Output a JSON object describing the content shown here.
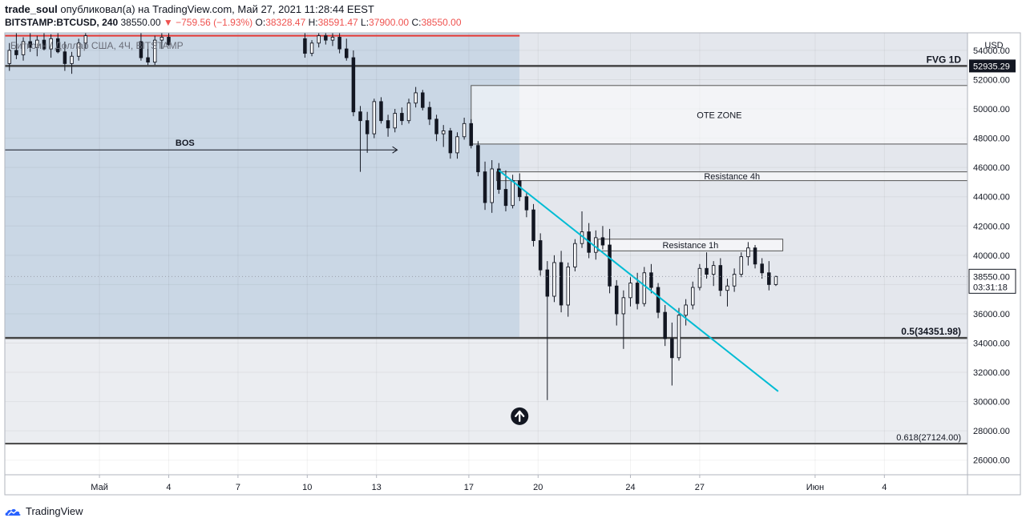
{
  "header": {
    "author": "trade_soul",
    "published_text": "опубликовал(а) на TradingView.com, Май 27, 2021 11:28:44 EEST",
    "symbol": "BITSTAMP:BTCUSD, 240",
    "last": "38550.00",
    "change": "−759.56 (−1.93%)",
    "open_label": "O:",
    "open": "38328.47",
    "high_label": "H:",
    "high": "38591.47",
    "low_label": "L:",
    "low": "37900.00",
    "close_label": "C:",
    "close": "38550.00"
  },
  "legend_overlay": "Биткоин / Доллар США, 4Ч, BITSTAMP",
  "footer": {
    "brand": "TradingView"
  },
  "colors": {
    "grid": "#e9ecf1",
    "candle": "#131722",
    "trendline": "#00bcd4",
    "red_line": "#e53935",
    "shade_blue": "#b8c9dc",
    "shade_gray": "#e6e8ee",
    "box_fill": "#ffffff"
  },
  "chart_data": {
    "type": "candlestick",
    "y_axis": {
      "unit": "USD",
      "ylim": [
        25000,
        55200
      ],
      "ticks": [
        26000,
        28000,
        30000,
        32000,
        34000,
        36000,
        38000,
        40000,
        42000,
        44000,
        46000,
        48000,
        50000,
        52000,
        54000
      ],
      "tick_labels": [
        "26000.00",
        "28000.00",
        "30000.00",
        "32000.00",
        "34000.00",
        "36000.00",
        "38000.00",
        "40000.00",
        "42000.00",
        "44000.00",
        "46000.00",
        "48000.00",
        "50000.00",
        "52000.00",
        "54000.00"
      ]
    },
    "x_axis": {
      "ticks": [
        {
          "day": 1,
          "label": "Май"
        },
        {
          "day": 4,
          "label": "4"
        },
        {
          "day": 7,
          "label": "7"
        },
        {
          "day": 10,
          "label": "10"
        },
        {
          "day": 13,
          "label": "13"
        },
        {
          "day": 17,
          "label": "17"
        },
        {
          "day": 20,
          "label": "20"
        },
        {
          "day": 24,
          "label": "24"
        },
        {
          "day": 27,
          "label": "27"
        },
        {
          "day": 32,
          "label": "Июн"
        },
        {
          "day": 35,
          "label": "4"
        }
      ],
      "xlim": [
        -3.1,
        38.6
      ]
    },
    "price_labels": [
      {
        "name": "fvg-price-label",
        "value": 52935.29,
        "text": "52935.29",
        "style": "dark"
      },
      {
        "name": "last-price-label",
        "value": 38550.0,
        "text": "38550.00",
        "sub": "03:31:18",
        "style": "light"
      }
    ],
    "levels": [
      {
        "name": "fvg-1d-level",
        "value": 52935.29,
        "label": "FVG 1D",
        "label_style": "bold"
      },
      {
        "name": "fib-05-level",
        "value": 34351.98,
        "label": "0.5(34351.98)",
        "label_style": "bold"
      },
      {
        "name": "fib-0618-level",
        "value": 27124.0,
        "label": "0.618(27124.00)",
        "label_style": "normal"
      }
    ],
    "red_line": {
      "value": 55000,
      "x_from": -3.1,
      "x_to": 19.2
    },
    "bos": {
      "label": "BOS",
      "value": 47200,
      "x_from": -3.1,
      "x_to": 13.9
    },
    "zones": [
      {
        "name": "ote-zone",
        "label": "OTE ZONE",
        "y_top": 51600,
        "y_bottom": 47600,
        "x_from": 17.1,
        "x_to": 38.6
      },
      {
        "name": "resistance-4h",
        "label": "Resistance 4h",
        "y_top": 45700,
        "y_bottom": 45100,
        "x_from": 18.2,
        "x_to": 38.6
      },
      {
        "name": "resistance-1h",
        "label": "Resistance 1h",
        "y_top": 41100,
        "y_bottom": 40300,
        "x_from": 22.6,
        "x_to": 30.6
      }
    ],
    "trendline": {
      "x1": 18.3,
      "y1": 45800,
      "x2": 30.4,
      "y2": 30700
    },
    "up_marker": {
      "x": 19.2,
      "y": 29000
    },
    "shaded_regions": [
      {
        "name": "premium-shade",
        "y_top": 55200,
        "y_bottom": 34351.98,
        "x_from": -3.1,
        "x_to": 19.2
      },
      {
        "name": "discount-shade",
        "y_top": 34351.98,
        "y_bottom": 27124.0,
        "x_from": -3.1,
        "x_to": 38.6
      }
    ],
    "candles": [
      {
        "x": -2.9,
        "o": 53100,
        "h": 54500,
        "l": 52600,
        "c": 54000
      },
      {
        "x": -2.6,
        "o": 54000,
        "h": 55200,
        "l": 53400,
        "c": 53700
      },
      {
        "x": -2.3,
        "o": 53700,
        "h": 54900,
        "l": 53300,
        "c": 54600
      },
      {
        "x": -2.0,
        "o": 54600,
        "h": 55200,
        "l": 53900,
        "c": 54200
      },
      {
        "x": -1.7,
        "o": 54200,
        "h": 55000,
        "l": 53600,
        "c": 54700
      },
      {
        "x": -1.4,
        "o": 54700,
        "h": 55200,
        "l": 54000,
        "c": 54100
      },
      {
        "x": -1.1,
        "o": 54100,
        "h": 55100,
        "l": 53500,
        "c": 54800
      },
      {
        "x": -0.8,
        "o": 54800,
        "h": 55200,
        "l": 53800,
        "c": 53900
      },
      {
        "x": -0.5,
        "o": 53900,
        "h": 54600,
        "l": 52600,
        "c": 53100
      },
      {
        "x": -0.2,
        "o": 53100,
        "h": 53900,
        "l": 52400,
        "c": 53600
      },
      {
        "x": 0.1,
        "o": 53600,
        "h": 54800,
        "l": 53300,
        "c": 54500
      },
      {
        "x": 0.4,
        "o": 54500,
        "h": 55200,
        "l": 54100,
        "c": 55000
      },
      {
        "x": 2.8,
        "o": 54600,
        "h": 55200,
        "l": 53300,
        "c": 53500
      },
      {
        "x": 3.1,
        "o": 53500,
        "h": 54300,
        "l": 53000,
        "c": 53200
      },
      {
        "x": 3.4,
        "o": 53200,
        "h": 55000,
        "l": 53000,
        "c": 54700
      },
      {
        "x": 3.7,
        "o": 54700,
        "h": 55200,
        "l": 54100,
        "c": 54900
      },
      {
        "x": 4.0,
        "o": 54900,
        "h": 55200,
        "l": 54300,
        "c": 54400
      },
      {
        "x": 9.9,
        "o": 54800,
        "h": 55200,
        "l": 53500,
        "c": 53800
      },
      {
        "x": 10.2,
        "o": 53800,
        "h": 54700,
        "l": 53600,
        "c": 54500
      },
      {
        "x": 10.5,
        "o": 54500,
        "h": 55200,
        "l": 54200,
        "c": 55000
      },
      {
        "x": 10.8,
        "o": 55000,
        "h": 55200,
        "l": 54400,
        "c": 54700
      },
      {
        "x": 11.1,
        "o": 54700,
        "h": 55200,
        "l": 54300,
        "c": 54900
      },
      {
        "x": 11.4,
        "o": 54900,
        "h": 55200,
        "l": 53800,
        "c": 54100
      },
      {
        "x": 11.7,
        "o": 54100,
        "h": 54800,
        "l": 53300,
        "c": 53500
      },
      {
        "x": 12.0,
        "o": 53500,
        "h": 54000,
        "l": 49500,
        "c": 49800
      },
      {
        "x": 12.3,
        "o": 49800,
        "h": 50200,
        "l": 45700,
        "c": 49200
      },
      {
        "x": 12.6,
        "o": 49200,
        "h": 49800,
        "l": 47000,
        "c": 48300
      },
      {
        "x": 12.9,
        "o": 48300,
        "h": 50700,
        "l": 48000,
        "c": 50500
      },
      {
        "x": 13.2,
        "o": 50500,
        "h": 50800,
        "l": 49000,
        "c": 49200
      },
      {
        "x": 13.5,
        "o": 49200,
        "h": 49600,
        "l": 48100,
        "c": 48700
      },
      {
        "x": 13.8,
        "o": 48700,
        "h": 50000,
        "l": 48400,
        "c": 49700
      },
      {
        "x": 14.1,
        "o": 49700,
        "h": 50100,
        "l": 48900,
        "c": 49200
      },
      {
        "x": 14.4,
        "o": 49200,
        "h": 50700,
        "l": 49000,
        "c": 50400
      },
      {
        "x": 14.7,
        "o": 50400,
        "h": 51500,
        "l": 50100,
        "c": 51100
      },
      {
        "x": 15.0,
        "o": 51100,
        "h": 51300,
        "l": 49900,
        "c": 50100
      },
      {
        "x": 15.3,
        "o": 50100,
        "h": 50500,
        "l": 48900,
        "c": 49300
      },
      {
        "x": 15.6,
        "o": 49300,
        "h": 49600,
        "l": 47800,
        "c": 48300
      },
      {
        "x": 15.9,
        "o": 48300,
        "h": 48900,
        "l": 47400,
        "c": 48500
      },
      {
        "x": 16.2,
        "o": 48500,
        "h": 48700,
        "l": 46600,
        "c": 47000
      },
      {
        "x": 16.5,
        "o": 47000,
        "h": 48400,
        "l": 46600,
        "c": 48100
      },
      {
        "x": 16.8,
        "o": 48100,
        "h": 49400,
        "l": 47900,
        "c": 49000
      },
      {
        "x": 17.1,
        "o": 49000,
        "h": 49300,
        "l": 47300,
        "c": 47500
      },
      {
        "x": 17.4,
        "o": 47500,
        "h": 47800,
        "l": 45400,
        "c": 45700
      },
      {
        "x": 17.7,
        "o": 45700,
        "h": 46400,
        "l": 43100,
        "c": 43600
      },
      {
        "x": 18.0,
        "o": 43600,
        "h": 46500,
        "l": 42900,
        "c": 45900
      },
      {
        "x": 18.3,
        "o": 45900,
        "h": 46300,
        "l": 44200,
        "c": 44500
      },
      {
        "x": 18.6,
        "o": 44500,
        "h": 45800,
        "l": 43000,
        "c": 43400
      },
      {
        "x": 18.9,
        "o": 43400,
        "h": 45500,
        "l": 43200,
        "c": 45100
      },
      {
        "x": 19.2,
        "o": 45100,
        "h": 45600,
        "l": 43700,
        "c": 44000
      },
      {
        "x": 19.5,
        "o": 44000,
        "h": 44300,
        "l": 42600,
        "c": 43100
      },
      {
        "x": 19.8,
        "o": 43100,
        "h": 43500,
        "l": 40600,
        "c": 41000
      },
      {
        "x": 20.1,
        "o": 41000,
        "h": 41500,
        "l": 38600,
        "c": 39000
      },
      {
        "x": 20.4,
        "o": 39000,
        "h": 39600,
        "l": 30100,
        "c": 37200
      },
      {
        "x": 20.7,
        "o": 37200,
        "h": 40000,
        "l": 36800,
        "c": 39500
      },
      {
        "x": 21.0,
        "o": 39500,
        "h": 40300,
        "l": 36100,
        "c": 36600
      },
      {
        "x": 21.3,
        "o": 36600,
        "h": 39500,
        "l": 35800,
        "c": 39200
      },
      {
        "x": 21.6,
        "o": 39200,
        "h": 41100,
        "l": 38900,
        "c": 40800
      },
      {
        "x": 21.9,
        "o": 40800,
        "h": 43000,
        "l": 40500,
        "c": 41600
      },
      {
        "x": 22.2,
        "o": 41600,
        "h": 42200,
        "l": 39800,
        "c": 40200
      },
      {
        "x": 22.5,
        "o": 40200,
        "h": 41700,
        "l": 39700,
        "c": 41200
      },
      {
        "x": 22.8,
        "o": 41200,
        "h": 42000,
        "l": 40400,
        "c": 40700
      },
      {
        "x": 23.1,
        "o": 40700,
        "h": 41800,
        "l": 37400,
        "c": 37900
      },
      {
        "x": 23.4,
        "o": 37900,
        "h": 38300,
        "l": 35200,
        "c": 36000
      },
      {
        "x": 23.7,
        "o": 36000,
        "h": 37600,
        "l": 33600,
        "c": 37100
      },
      {
        "x": 24.0,
        "o": 37100,
        "h": 38500,
        "l": 36500,
        "c": 38100
      },
      {
        "x": 24.3,
        "o": 38100,
        "h": 38800,
        "l": 36300,
        "c": 36700
      },
      {
        "x": 24.6,
        "o": 36700,
        "h": 39200,
        "l": 36500,
        "c": 38800
      },
      {
        "x": 24.9,
        "o": 38800,
        "h": 39400,
        "l": 37400,
        "c": 37800
      },
      {
        "x": 25.2,
        "o": 37800,
        "h": 38100,
        "l": 35700,
        "c": 36100
      },
      {
        "x": 25.5,
        "o": 36100,
        "h": 36600,
        "l": 33800,
        "c": 34300
      },
      {
        "x": 25.8,
        "o": 34300,
        "h": 35400,
        "l": 31100,
        "c": 33000
      },
      {
        "x": 26.1,
        "o": 33000,
        "h": 36400,
        "l": 32800,
        "c": 35900
      },
      {
        "x": 26.4,
        "o": 35900,
        "h": 37000,
        "l": 35200,
        "c": 36600
      },
      {
        "x": 26.7,
        "o": 36600,
        "h": 38200,
        "l": 36300,
        "c": 37800
      },
      {
        "x": 27.0,
        "o": 37800,
        "h": 39400,
        "l": 37600,
        "c": 39100
      },
      {
        "x": 27.3,
        "o": 39100,
        "h": 40200,
        "l": 38400,
        "c": 38700
      },
      {
        "x": 27.6,
        "o": 38700,
        "h": 39600,
        "l": 37900,
        "c": 39300
      },
      {
        "x": 27.9,
        "o": 39300,
        "h": 39800,
        "l": 37200,
        "c": 37600
      },
      {
        "x": 28.2,
        "o": 37600,
        "h": 38400,
        "l": 36500,
        "c": 37900
      },
      {
        "x": 28.5,
        "o": 37900,
        "h": 39100,
        "l": 37500,
        "c": 38700
      },
      {
        "x": 28.8,
        "o": 38700,
        "h": 40200,
        "l": 38500,
        "c": 39900
      },
      {
        "x": 29.1,
        "o": 39900,
        "h": 40900,
        "l": 39300,
        "c": 40500
      },
      {
        "x": 29.4,
        "o": 40500,
        "h": 40700,
        "l": 39100,
        "c": 39400
      },
      {
        "x": 29.7,
        "o": 39400,
        "h": 39800,
        "l": 38400,
        "c": 38800
      },
      {
        "x": 30.0,
        "o": 38800,
        "h": 39600,
        "l": 37600,
        "c": 38000
      },
      {
        "x": 30.3,
        "o": 38000,
        "h": 38600,
        "l": 37900,
        "c": 38550
      }
    ]
  }
}
